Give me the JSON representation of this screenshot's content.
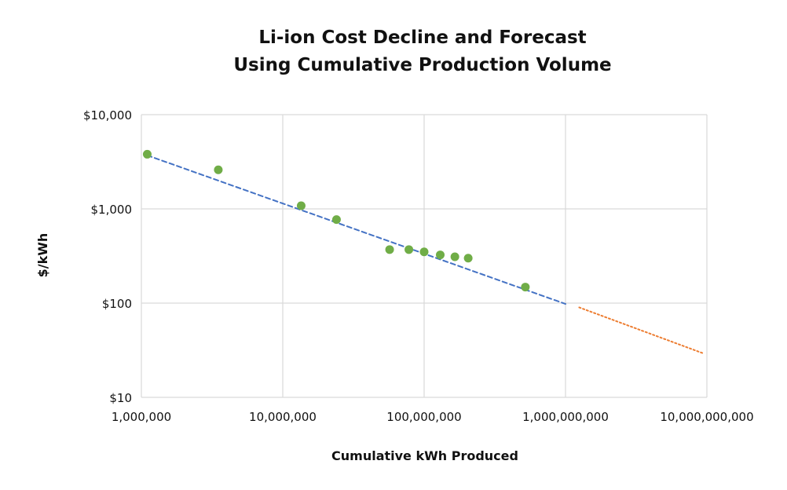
{
  "chart_data": {
    "type": "scatter",
    "title_lines": [
      "Li-ion Cost Decline and Forecast",
      "Using Cumulative Production Volume"
    ],
    "xlabel": "Cumulative kWh Produced",
    "ylabel": "$/kWh",
    "x_scale": "log",
    "y_scale": "log",
    "xlim": [
      1000000,
      10000000000
    ],
    "ylim": [
      10,
      10000
    ],
    "x_ticks": [
      {
        "value": 1000000,
        "label": "1,000,000"
      },
      {
        "value": 10000000,
        "label": "10,000,000"
      },
      {
        "value": 100000000,
        "label": "100,000,000"
      },
      {
        "value": 1000000000,
        "label": "1,000,000,000"
      },
      {
        "value": 10000000000,
        "label": "10,000,000,000"
      }
    ],
    "y_ticks": [
      {
        "value": 10,
        "label": "$10"
      },
      {
        "value": 100,
        "label": "$100"
      },
      {
        "value": 1000,
        "label": "$1,000"
      },
      {
        "value": 10000,
        "label": "$10,000"
      }
    ],
    "grid": true,
    "legend": "none",
    "colors": {
      "points": "#70ad47",
      "trend": "#4472c4",
      "forecast": "#ed7d31",
      "grid": "#d9d9d9"
    },
    "series": [
      {
        "kind": "points",
        "points": [
          {
            "x": 1100000,
            "y": 3800
          },
          {
            "x": 3500000,
            "y": 2600
          },
          {
            "x": 13500000,
            "y": 1080
          },
          {
            "x": 24000000,
            "y": 770
          },
          {
            "x": 57000000,
            "y": 370
          },
          {
            "x": 78000000,
            "y": 370
          },
          {
            "x": 100000000,
            "y": 350
          },
          {
            "x": 130000000,
            "y": 325
          },
          {
            "x": 165000000,
            "y": 310
          },
          {
            "x": 205000000,
            "y": 300
          },
          {
            "x": 520000000,
            "y": 148
          }
        ]
      },
      {
        "kind": "trend",
        "points": [
          {
            "x": 1100000,
            "y": 3700
          },
          {
            "x": 1000000000,
            "y": 98
          }
        ]
      },
      {
        "kind": "forecast",
        "points": [
          {
            "x": 1250000000,
            "y": 90
          },
          {
            "x": 9600000000,
            "y": 29
          }
        ]
      }
    ]
  }
}
